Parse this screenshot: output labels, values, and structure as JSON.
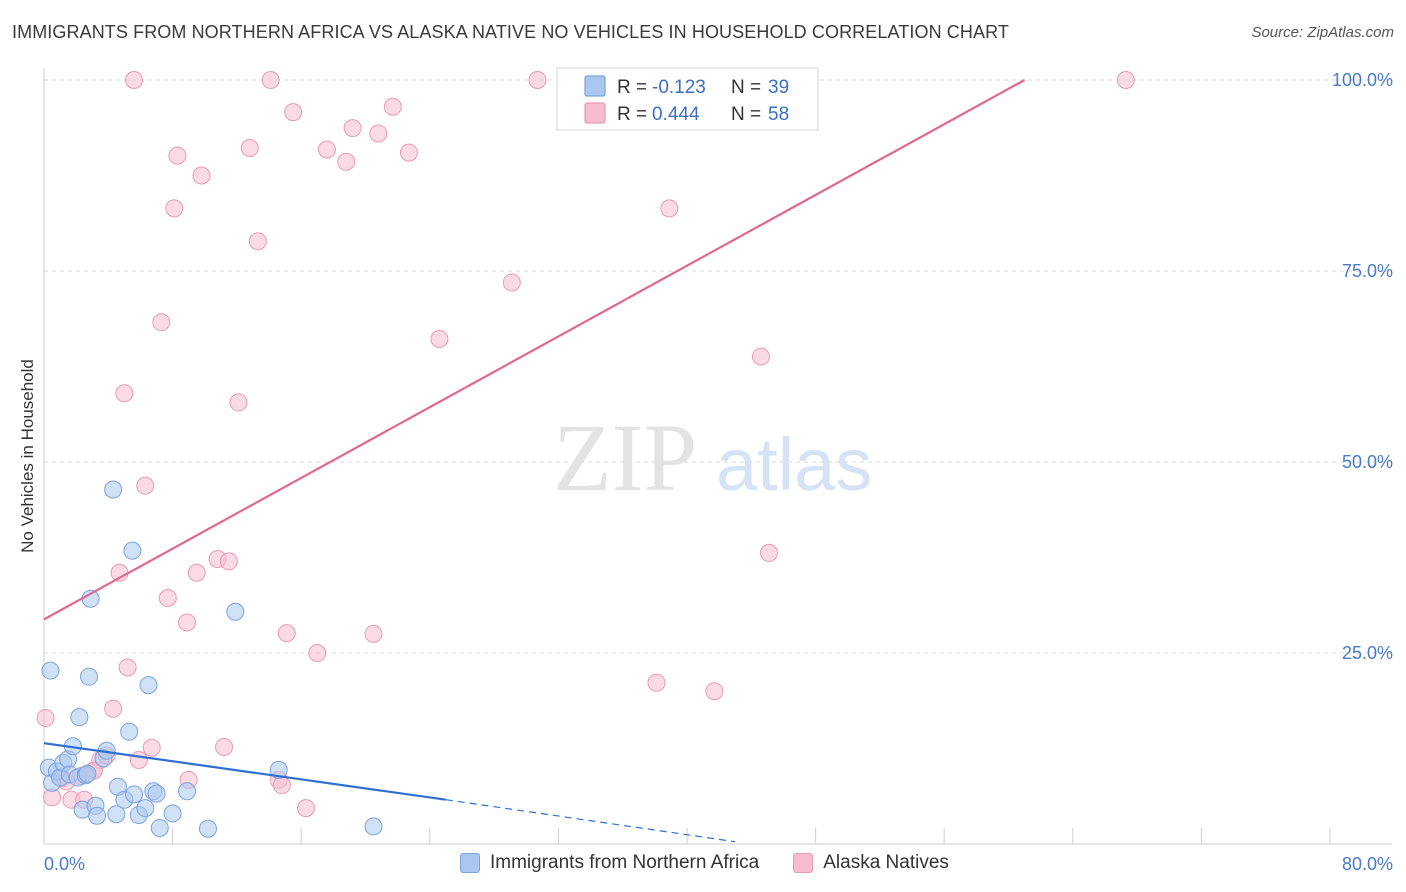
{
  "title": "IMMIGRANTS FROM NORTHERN AFRICA VS ALASKA NATIVE NO VEHICLES IN HOUSEHOLD CORRELATION CHART",
  "source": "Source: ZipAtlas.com",
  "watermark": {
    "zip": "ZIP",
    "atlas": "atlas"
  },
  "colors": {
    "blue_fill": "#aac8ef",
    "blue_stroke": "#7aa3df",
    "blue_line": "#2f6fd1",
    "pink_fill": "#f6bdd0",
    "pink_stroke": "#eb9ab5",
    "pink_line": "#e0678f",
    "tick_label": "#4a7ac9",
    "grid": "#d9d9d9"
  },
  "legend": {
    "rows": [
      {
        "r_label": "R =",
        "r_value": "-0.123",
        "n_label": "N =",
        "n_value": "39",
        "color": "blue"
      },
      {
        "r_label": "R =",
        "r_value": "0.444",
        "n_label": "N =",
        "n_value": "58",
        "color": "pink"
      }
    ]
  },
  "bottom_legend": [
    {
      "label": "Immigrants from Northern Africa",
      "color": "blue"
    },
    {
      "label": "Alaska Natives",
      "color": "pink"
    }
  ],
  "chart_data": {
    "type": "scatter",
    "xlabel": "",
    "ylabel": "No Vehicles in Household",
    "xlim": [
      0,
      80
    ],
    "ylim": [
      0,
      100
    ],
    "x_tick_labels": [
      "0.0%",
      "80.0%"
    ],
    "y_ticks": [
      25,
      50,
      75,
      100
    ],
    "y_tick_labels": [
      "25.0%",
      "50.0%",
      "75.0%",
      "100.0%"
    ],
    "grid": true,
    "series": [
      {
        "name": "Immigrants from Northern Africa",
        "color": "blue",
        "trend": {
          "x_solid": [
            0,
            25
          ],
          "y_solid": [
            13.2,
            5.8
          ],
          "x_dashed": [
            25,
            43
          ],
          "y_dashed": [
            5.8,
            0.3
          ]
        },
        "points": [
          [
            0.3,
            10.0
          ],
          [
            0.4,
            22.7
          ],
          [
            0.5,
            8.0
          ],
          [
            0.8,
            9.5
          ],
          [
            1.0,
            8.7
          ],
          [
            1.2,
            10.6
          ],
          [
            1.5,
            11.1
          ],
          [
            1.6,
            9.1
          ],
          [
            1.8,
            12.8
          ],
          [
            2.1,
            8.7
          ],
          [
            2.2,
            16.6
          ],
          [
            2.4,
            4.5
          ],
          [
            2.6,
            9.0
          ],
          [
            2.8,
            21.9
          ],
          [
            2.9,
            32.1
          ],
          [
            3.2,
            5.0
          ],
          [
            3.3,
            3.7
          ],
          [
            3.7,
            11.2
          ],
          [
            3.9,
            12.2
          ],
          [
            4.3,
            46.4
          ],
          [
            4.5,
            3.9
          ],
          [
            4.6,
            7.5
          ],
          [
            5.0,
            5.8
          ],
          [
            5.3,
            14.7
          ],
          [
            5.5,
            38.4
          ],
          [
            5.6,
            6.5
          ],
          [
            5.9,
            3.8
          ],
          [
            6.3,
            4.7
          ],
          [
            6.5,
            20.8
          ],
          [
            6.8,
            6.9
          ],
          [
            7.0,
            6.6
          ],
          [
            7.2,
            2.1
          ],
          [
            8.0,
            4.0
          ],
          [
            8.9,
            6.9
          ],
          [
            10.2,
            2.0
          ],
          [
            11.9,
            30.4
          ],
          [
            14.6,
            9.7
          ],
          [
            20.5,
            2.3
          ],
          [
            2.7,
            9.2
          ]
        ]
      },
      {
        "name": "Alaska Natives",
        "color": "pink",
        "trend": {
          "x": [
            0,
            61
          ],
          "y": [
            29.4,
            100
          ]
        },
        "points": [
          [
            0.1,
            16.5
          ],
          [
            0.5,
            6.1
          ],
          [
            1.1,
            8.6
          ],
          [
            1.7,
            5.8
          ],
          [
            2.3,
            8.9
          ],
          [
            2.5,
            5.8
          ],
          [
            3.1,
            9.6
          ],
          [
            3.5,
            11.0
          ],
          [
            3.9,
            11.6
          ],
          [
            4.3,
            17.7
          ],
          [
            4.7,
            35.5
          ],
          [
            5.0,
            59.0
          ],
          [
            5.2,
            23.1
          ],
          [
            5.6,
            100.0
          ],
          [
            5.9,
            11.0
          ],
          [
            6.3,
            46.9
          ],
          [
            6.7,
            12.6
          ],
          [
            7.3,
            68.3
          ],
          [
            7.7,
            32.2
          ],
          [
            8.1,
            83.2
          ],
          [
            8.3,
            90.1
          ],
          [
            8.9,
            29.0
          ],
          [
            9.0,
            8.4
          ],
          [
            9.5,
            35.5
          ],
          [
            9.8,
            87.5
          ],
          [
            10.8,
            37.3
          ],
          [
            11.2,
            12.7
          ],
          [
            11.5,
            37.0
          ],
          [
            12.1,
            57.8
          ],
          [
            12.8,
            91.1
          ],
          [
            13.3,
            78.9
          ],
          [
            14.1,
            100.0
          ],
          [
            14.6,
            8.4
          ],
          [
            14.8,
            7.7
          ],
          [
            15.1,
            27.6
          ],
          [
            15.5,
            95.8
          ],
          [
            16.3,
            4.7
          ],
          [
            17.0,
            25.0
          ],
          [
            17.6,
            90.9
          ],
          [
            18.8,
            89.3
          ],
          [
            19.2,
            93.7
          ],
          [
            20.5,
            27.5
          ],
          [
            20.8,
            93.0
          ],
          [
            21.7,
            96.5
          ],
          [
            22.7,
            90.5
          ],
          [
            24.6,
            66.1
          ],
          [
            29.1,
            73.5
          ],
          [
            30.7,
            100.0
          ],
          [
            33.0,
            100.0
          ],
          [
            33.4,
            100.0
          ],
          [
            38.1,
            21.1
          ],
          [
            38.9,
            83.2
          ],
          [
            41.7,
            20.0
          ],
          [
            44.6,
            63.8
          ],
          [
            45.1,
            38.1
          ],
          [
            67.3,
            100.0
          ],
          [
            3.1,
            9.6
          ],
          [
            1.4,
            8.2
          ]
        ]
      }
    ]
  }
}
